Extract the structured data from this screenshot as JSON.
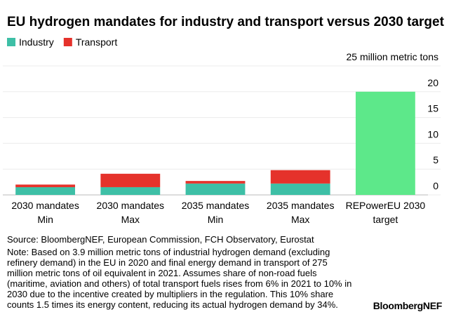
{
  "chart_data": {
    "type": "stacked_bar",
    "title": "EU hydrogen mandates for industry and transport versus 2030 target",
    "categories": [
      [
        "2030 mandates",
        "Min"
      ],
      [
        "2030 mandates",
        "Max"
      ],
      [
        "2035 mandates",
        "Min"
      ],
      [
        "2035 mandates",
        "Max"
      ],
      [
        "REPowerEU 2030",
        "target"
      ]
    ],
    "series": [
      {
        "name": "Industry",
        "color": "#3ebfa6",
        "values": [
          1.5,
          1.5,
          2.2,
          2.2,
          null
        ]
      },
      {
        "name": "Transport",
        "color": "#e5322b",
        "values": [
          0.5,
          2.6,
          0.5,
          2.6,
          null
        ]
      },
      {
        "color": "#5de88a",
        "values": [
          null,
          null,
          null,
          null,
          20
        ]
      }
    ],
    "ylim": [
      0,
      25
    ],
    "yticks": [
      0,
      5,
      10,
      15,
      20,
      {
        "value": 25,
        "label": "25 million metric tons"
      }
    ],
    "grid": true,
    "legend": "top-left",
    "source": "Source: BloombergNEF, European Commission, FCH Observatory, Eurostat",
    "note_lines": [
      "Note: Based on 3.9 million metric tons of industrial hydrogen demand (excluding",
      "refinery demand) in the EU in 2020 and final energy demand in transport of 275",
      "million metric tons of oil equivalent in 2021. Assumes share of non-road fuels",
      "(maritime, aviation and others) of total transport fuels rises from 6% in 2021 to 10% in",
      "2030 due to the incentive created by multipliers in the regulation. This 10% share",
      "counts 1.5 times its energy content, reducing its actual hydrogen demand by 34%."
    ],
    "brand": "BloombergNEF"
  }
}
